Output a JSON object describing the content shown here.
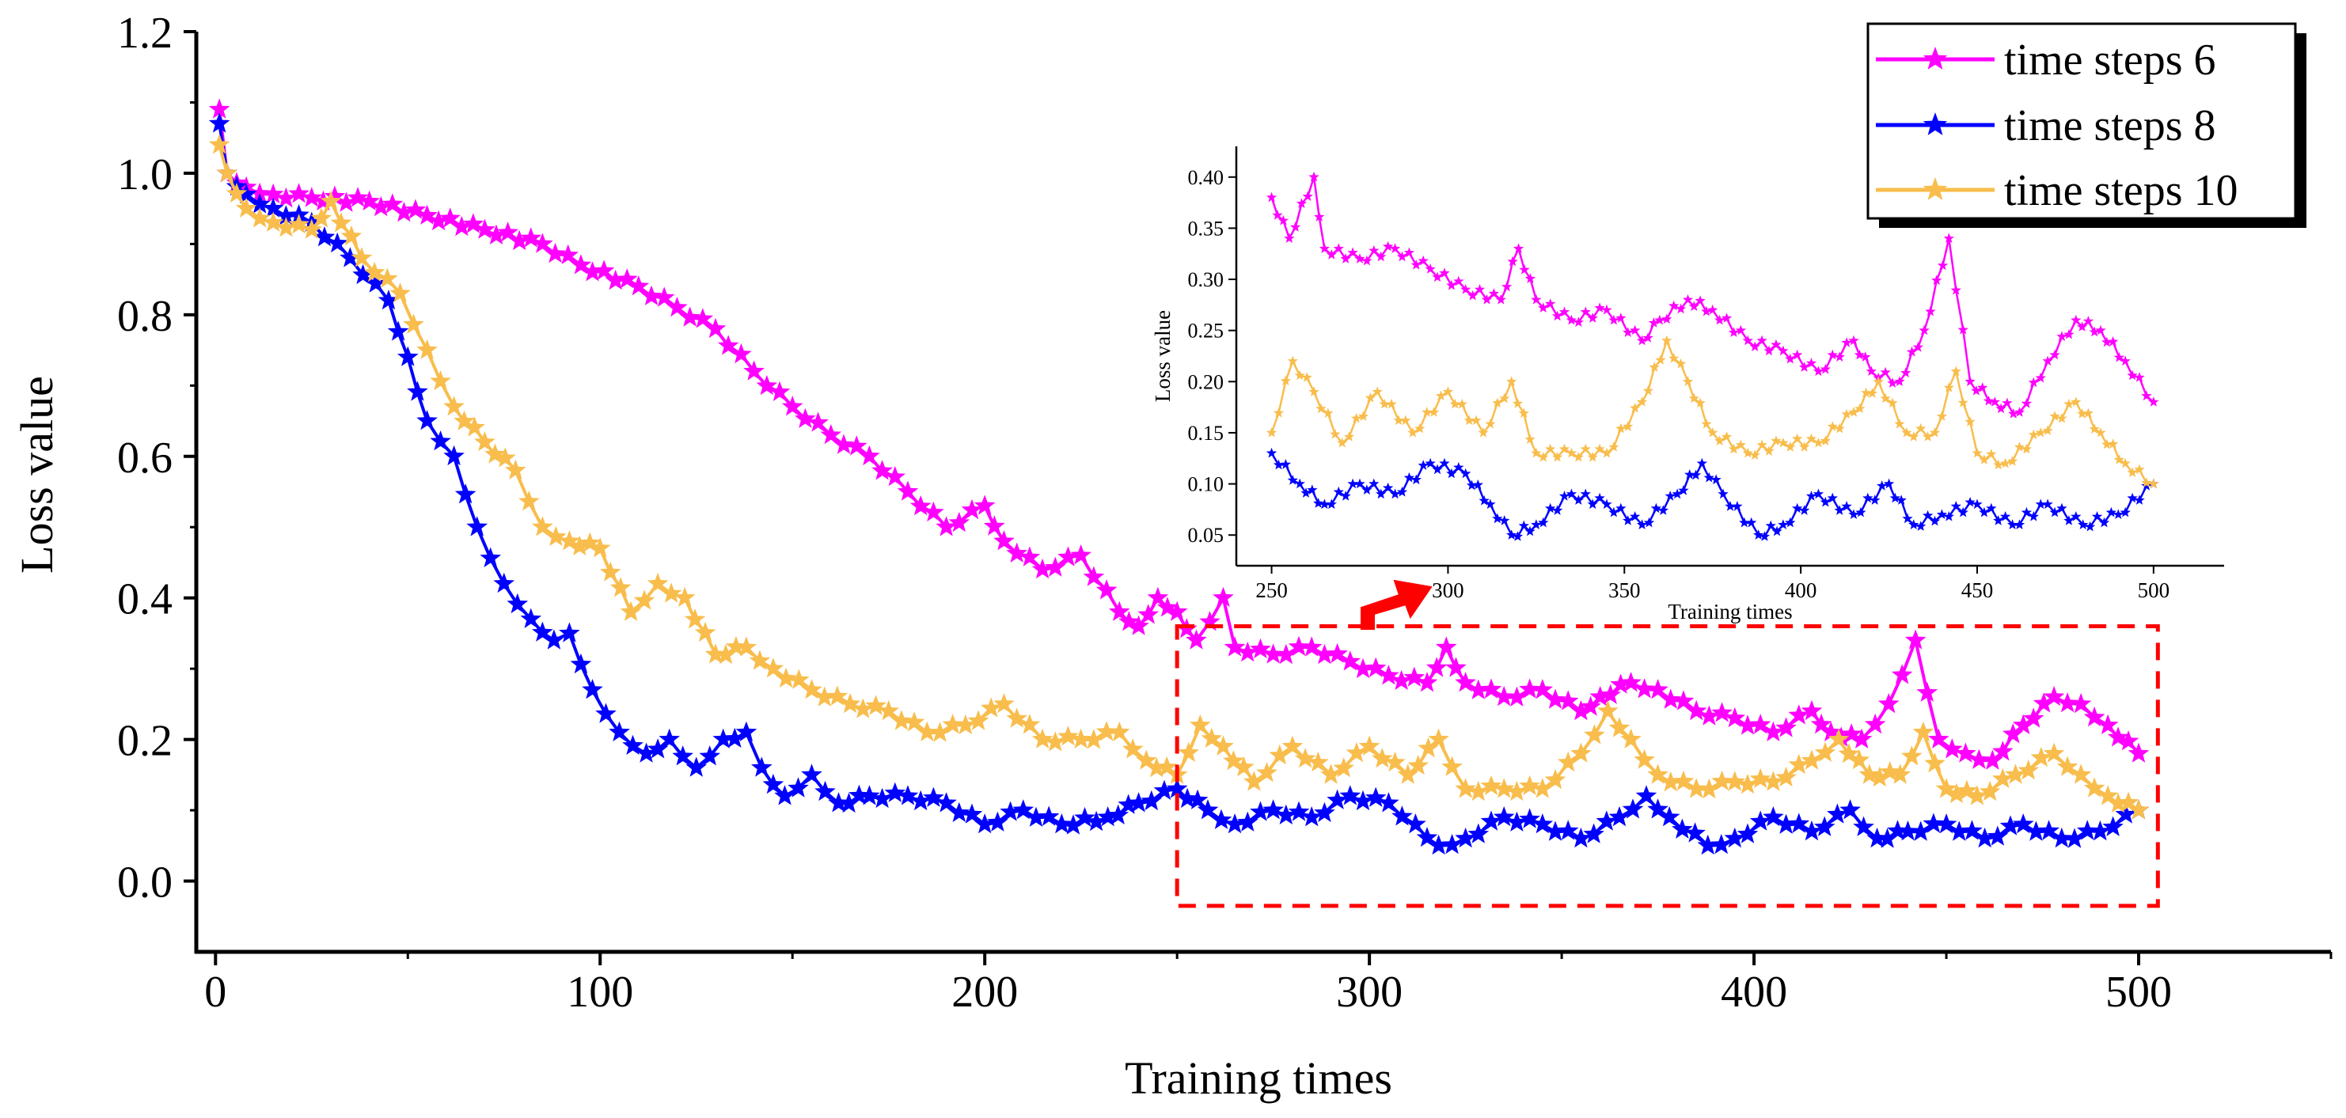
{
  "chart_data": [
    {
      "id": "main",
      "type": "line",
      "title": "",
      "xlabel": "Training times",
      "ylabel": "Loss value",
      "xlim": [
        -5,
        550
      ],
      "ylim": [
        -0.1,
        1.2
      ],
      "xticks": [
        0,
        100,
        200,
        300,
        400,
        500
      ],
      "yticks": [
        0.0,
        0.2,
        0.4,
        0.6,
        0.8,
        1.0,
        1.2
      ],
      "xtick_labels": [
        "0",
        "100",
        "200",
        "300",
        "400",
        "500"
      ],
      "ytick_labels": [
        "0.0",
        "0.2",
        "0.4",
        "0.6",
        "0.8",
        "1.0",
        "1.2"
      ],
      "grid": false,
      "marker": "star",
      "series": [
        {
          "name": "time steps 6",
          "color": "#ff00ff",
          "points": [
            [
              1,
              1.09
            ],
            [
              3,
              1.0
            ],
            [
              8,
              0.98
            ],
            [
              15,
              0.97
            ],
            [
              25,
              0.965
            ],
            [
              40,
              0.96
            ],
            [
              55,
              0.94
            ],
            [
              70,
              0.92
            ],
            [
              85,
              0.9
            ],
            [
              95,
              0.87
            ],
            [
              110,
              0.84
            ],
            [
              120,
              0.81
            ],
            [
              130,
              0.78
            ],
            [
              140,
              0.72
            ],
            [
              150,
              0.67
            ],
            [
              160,
              0.63
            ],
            [
              170,
              0.6
            ],
            [
              180,
              0.55
            ],
            [
              190,
              0.5
            ],
            [
              200,
              0.53
            ],
            [
              205,
              0.48
            ],
            [
              215,
              0.44
            ],
            [
              225,
              0.46
            ],
            [
              235,
              0.38
            ],
            [
              240,
              0.36
            ],
            [
              245,
              0.4
            ],
            [
              250,
              0.38
            ],
            [
              255,
              0.34
            ],
            [
              262,
              0.4
            ],
            [
              265,
              0.33
            ],
            [
              275,
              0.32
            ],
            [
              285,
              0.33
            ],
            [
              295,
              0.31
            ],
            [
              305,
              0.29
            ],
            [
              315,
              0.28
            ],
            [
              320,
              0.33
            ],
            [
              325,
              0.28
            ],
            [
              335,
              0.26
            ],
            [
              345,
              0.27
            ],
            [
              355,
              0.24
            ],
            [
              360,
              0.26
            ],
            [
              368,
              0.28
            ],
            [
              375,
              0.27
            ],
            [
              385,
              0.24
            ],
            [
              395,
              0.23
            ],
            [
              405,
              0.21
            ],
            [
              415,
              0.24
            ],
            [
              420,
              0.21
            ],
            [
              428,
              0.2
            ],
            [
              435,
              0.25
            ],
            [
              442,
              0.34
            ],
            [
              448,
              0.2
            ],
            [
              455,
              0.18
            ],
            [
              462,
              0.17
            ],
            [
              470,
              0.22
            ],
            [
              478,
              0.26
            ],
            [
              485,
              0.25
            ],
            [
              492,
              0.22
            ],
            [
              500,
              0.18
            ]
          ]
        },
        {
          "name": "time steps 8",
          "color": "#0000ff",
          "points": [
            [
              1,
              1.07
            ],
            [
              3,
              1.0
            ],
            [
              8,
              0.97
            ],
            [
              15,
              0.95
            ],
            [
              25,
              0.93
            ],
            [
              35,
              0.88
            ],
            [
              45,
              0.82
            ],
            [
              50,
              0.74
            ],
            [
              55,
              0.65
            ],
            [
              62,
              0.6
            ],
            [
              68,
              0.5
            ],
            [
              75,
              0.42
            ],
            [
              82,
              0.37
            ],
            [
              88,
              0.34
            ],
            [
              92,
              0.35
            ],
            [
              98,
              0.27
            ],
            [
              105,
              0.21
            ],
            [
              112,
              0.18
            ],
            [
              118,
              0.2
            ],
            [
              125,
              0.16
            ],
            [
              132,
              0.2
            ],
            [
              138,
              0.21
            ],
            [
              142,
              0.16
            ],
            [
              148,
              0.12
            ],
            [
              155,
              0.15
            ],
            [
              162,
              0.11
            ],
            [
              170,
              0.12
            ],
            [
              180,
              0.12
            ],
            [
              190,
              0.11
            ],
            [
              200,
              0.08
            ],
            [
              210,
              0.1
            ],
            [
              220,
              0.08
            ],
            [
              232,
              0.09
            ],
            [
              240,
              0.11
            ],
            [
              250,
              0.13
            ],
            [
              258,
              0.1
            ],
            [
              265,
              0.08
            ],
            [
              275,
              0.1
            ],
            [
              285,
              0.09
            ],
            [
              295,
              0.12
            ],
            [
              305,
              0.11
            ],
            [
              312,
              0.08
            ],
            [
              318,
              0.05
            ],
            [
              325,
              0.06
            ],
            [
              335,
              0.09
            ],
            [
              345,
              0.08
            ],
            [
              355,
              0.06
            ],
            [
              365,
              0.09
            ],
            [
              372,
              0.12
            ],
            [
              378,
              0.09
            ],
            [
              388,
              0.05
            ],
            [
              395,
              0.06
            ],
            [
              405,
              0.09
            ],
            [
              415,
              0.07
            ],
            [
              425,
              0.1
            ],
            [
              432,
              0.06
            ],
            [
              440,
              0.07
            ],
            [
              450,
              0.08
            ],
            [
              460,
              0.06
            ],
            [
              470,
              0.08
            ],
            [
              480,
              0.06
            ],
            [
              490,
              0.07
            ],
            [
              500,
              0.1
            ]
          ]
        },
        {
          "name": "time steps 10",
          "color": "#f8bd4c",
          "points": [
            [
              1,
              1.04
            ],
            [
              3,
              1.0
            ],
            [
              8,
              0.95
            ],
            [
              15,
              0.93
            ],
            [
              25,
              0.92
            ],
            [
              30,
              0.96
            ],
            [
              38,
              0.88
            ],
            [
              48,
              0.83
            ],
            [
              55,
              0.75
            ],
            [
              62,
              0.67
            ],
            [
              70,
              0.62
            ],
            [
              78,
              0.58
            ],
            [
              85,
              0.5
            ],
            [
              92,
              0.48
            ],
            [
              100,
              0.47
            ],
            [
              108,
              0.38
            ],
            [
              115,
              0.42
            ],
            [
              122,
              0.4
            ],
            [
              130,
              0.32
            ],
            [
              138,
              0.33
            ],
            [
              145,
              0.3
            ],
            [
              155,
              0.27
            ],
            [
              165,
              0.25
            ],
            [
              175,
              0.24
            ],
            [
              185,
              0.21
            ],
            [
              195,
              0.22
            ],
            [
              205,
              0.25
            ],
            [
              215,
              0.2
            ],
            [
              225,
              0.2
            ],
            [
              235,
              0.21
            ],
            [
              242,
              0.17
            ],
            [
              250,
              0.15
            ],
            [
              256,
              0.22
            ],
            [
              262,
              0.19
            ],
            [
              270,
              0.14
            ],
            [
              280,
              0.19
            ],
            [
              290,
              0.15
            ],
            [
              300,
              0.19
            ],
            [
              310,
              0.15
            ],
            [
              318,
              0.2
            ],
            [
              325,
              0.13
            ],
            [
              335,
              0.13
            ],
            [
              345,
              0.13
            ],
            [
              355,
              0.18
            ],
            [
              362,
              0.24
            ],
            [
              368,
              0.2
            ],
            [
              375,
              0.15
            ],
            [
              385,
              0.13
            ],
            [
              395,
              0.14
            ],
            [
              405,
              0.14
            ],
            [
              415,
              0.17
            ],
            [
              422,
              0.2
            ],
            [
              430,
              0.15
            ],
            [
              438,
              0.15
            ],
            [
              444,
              0.21
            ],
            [
              450,
              0.13
            ],
            [
              458,
              0.12
            ],
            [
              468,
              0.15
            ],
            [
              478,
              0.18
            ],
            [
              485,
              0.15
            ],
            [
              492,
              0.12
            ],
            [
              500,
              0.1
            ]
          ]
        }
      ]
    },
    {
      "id": "inset",
      "type": "line",
      "title": "",
      "xlabel": "Training times",
      "ylabel": "Loss value",
      "xlim": [
        240,
        520
      ],
      "ylim": [
        0.02,
        0.43
      ],
      "xticks": [
        250,
        300,
        350,
        400,
        450,
        500
      ],
      "yticks": [
        0.05,
        0.1,
        0.15,
        0.2,
        0.25,
        0.3,
        0.35,
        0.4
      ],
      "xtick_labels": [
        "250",
        "300",
        "350",
        "400",
        "450",
        "500"
      ],
      "ytick_labels": [
        "0.05",
        "0.10",
        "0.15",
        "0.20",
        "0.25",
        "0.30",
        "0.35",
        "0.40"
      ],
      "grid": false,
      "marker": "star"
    }
  ],
  "legend": {
    "position": "top-right",
    "entries": [
      {
        "label": "time steps 6",
        "color": "#ff00ff"
      },
      {
        "label": "time steps 8",
        "color": "#0000ff"
      },
      {
        "label": "time steps 10",
        "color": "#f8bd4c"
      }
    ]
  },
  "zoom_box": {
    "x_range": [
      250,
      505
    ],
    "y_range": [
      -0.035,
      0.36
    ],
    "color": "#ff0000"
  }
}
